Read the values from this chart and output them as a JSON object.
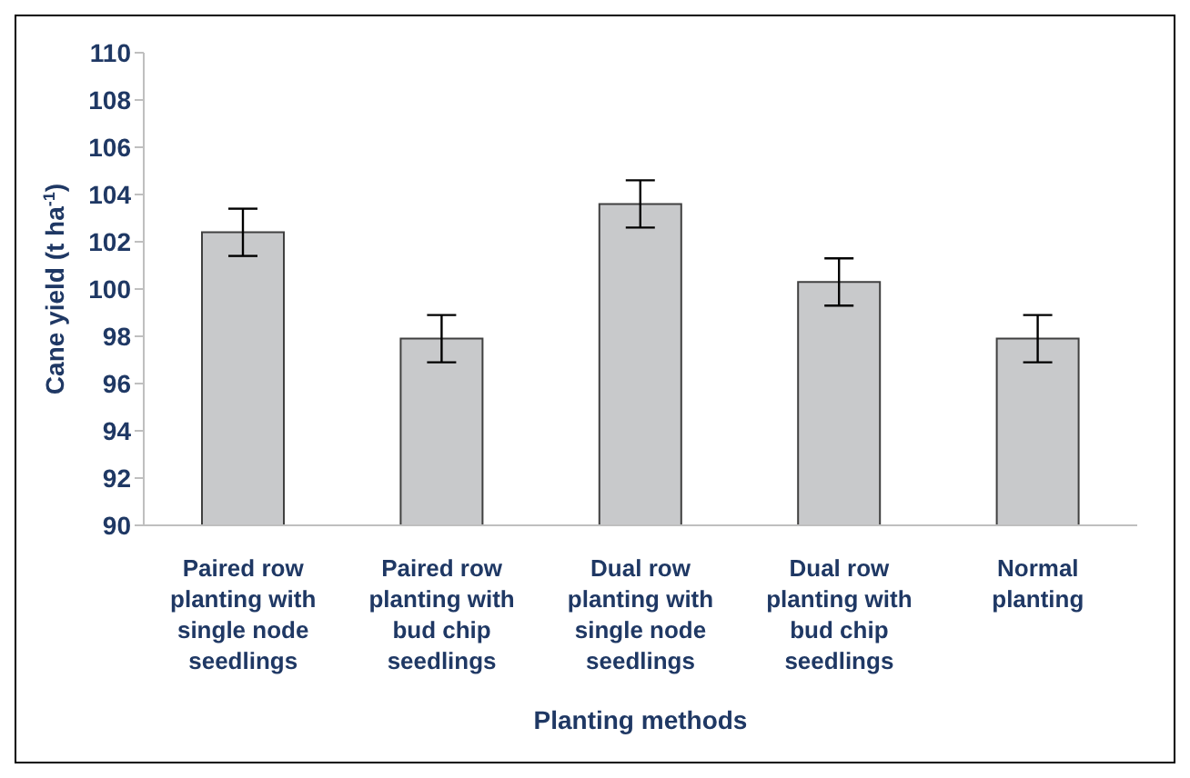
{
  "chart_data": {
    "type": "bar",
    "xlabel": "Planting methods",
    "ylabel": "Cane yield (t ha$^{-1}$)",
    "categories": [
      "Paired row planting with single node seedlings",
      "Paired row planting with bud chip seedlings",
      "Dual row planting with single node seedlings",
      "Dual row planting with bud chip seedlings",
      "Normal planting"
    ],
    "values": [
      102.4,
      97.9,
      103.6,
      100.3,
      97.9
    ],
    "errors": [
      1,
      1,
      1,
      1,
      1
    ],
    "color": "#c8c9cb",
    "ylim": [
      90,
      110
    ],
    "yticks": [
      90,
      92,
      94,
      96,
      98,
      100,
      102,
      104,
      106,
      108,
      110
    ],
    "grid": false
  }
}
